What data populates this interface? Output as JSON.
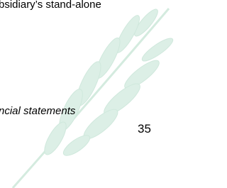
{
  "document": {
    "lines": [
      "bsidiary’s stand-alone",
      "ncial statements"
    ],
    "page_number": "35"
  }
}
